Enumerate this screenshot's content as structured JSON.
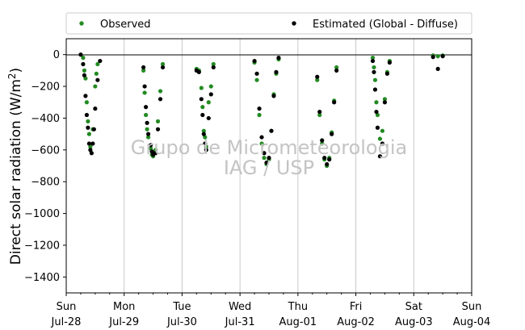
{
  "chart_data": {
    "type": "scatter",
    "title": "",
    "ylabel_main": "Direct solar radiation (W/m",
    "ylabel_sup": "2",
    "ylabel_close": ")",
    "ylim": [
      -1500,
      100
    ],
    "yticks": [
      0,
      -200,
      -400,
      -600,
      -800,
      -1000,
      -1200,
      -1400
    ],
    "xlim": [
      "2024-07-28",
      "2024-08-04"
    ],
    "xticks": [
      {
        "day": "Sun",
        "date": "Jul-28"
      },
      {
        "day": "Mon",
        "date": "Jul-29"
      },
      {
        "day": "Tue",
        "date": "Jul-30"
      },
      {
        "day": "Wed",
        "date": "Jul-31"
      },
      {
        "day": "Thu",
        "date": "Aug-01"
      },
      {
        "day": "Fri",
        "date": "Aug-02"
      },
      {
        "day": "Sat",
        "date": "Aug-03"
      },
      {
        "day": "Sun",
        "date": "Aug-04"
      }
    ],
    "grid": "vertical",
    "legend_placement": "top",
    "watermark": [
      "Grupo de Micrometeorologia",
      "IAG / USP"
    ],
    "series": [
      {
        "name": "Observed",
        "color": "#228b22",
        "points": [
          [
            "2024-07-28 06:00",
            0
          ],
          [
            "2024-07-28 07:00",
            -20
          ],
          [
            "2024-07-28 07:30",
            -100
          ],
          [
            "2024-07-28 08:00",
            -150
          ],
          [
            "2024-07-28 08:30",
            -300
          ],
          [
            "2024-07-28 09:00",
            -420
          ],
          [
            "2024-07-28 09:30",
            -500
          ],
          [
            "2024-07-28 10:00",
            -580
          ],
          [
            "2024-07-28 11:00",
            -470
          ],
          [
            "2024-07-28 12:00",
            -200
          ],
          [
            "2024-07-28 12:30",
            -120
          ],
          [
            "2024-07-28 13:00",
            -60
          ],
          [
            "2024-07-29 08:00",
            -100
          ],
          [
            "2024-07-29 08:30",
            -240
          ],
          [
            "2024-07-29 09:00",
            -380
          ],
          [
            "2024-07-29 09:30",
            -470
          ],
          [
            "2024-07-29 10:00",
            -520
          ],
          [
            "2024-07-29 11:00",
            -590
          ],
          [
            "2024-07-29 11:30",
            -630
          ],
          [
            "2024-07-29 12:00",
            -640
          ],
          [
            "2024-07-29 13:00",
            -600
          ],
          [
            "2024-07-29 14:00",
            -420
          ],
          [
            "2024-07-29 15:00",
            -230
          ],
          [
            "2024-07-29 16:00",
            -60
          ],
          [
            "2024-07-30 06:00",
            -90
          ],
          [
            "2024-07-30 07:00",
            -100
          ],
          [
            "2024-07-30 08:00",
            -210
          ],
          [
            "2024-07-30 08:30",
            -330
          ],
          [
            "2024-07-30 09:00",
            -480
          ],
          [
            "2024-07-30 09:30",
            -520
          ],
          [
            "2024-07-30 10:00",
            -580
          ],
          [
            "2024-07-30 11:00",
            -300
          ],
          [
            "2024-07-30 12:00",
            -200
          ],
          [
            "2024-07-30 13:00",
            -60
          ],
          [
            "2024-07-31 06:00",
            -50
          ],
          [
            "2024-07-31 07:00",
            -160
          ],
          [
            "2024-07-31 08:00",
            -380
          ],
          [
            "2024-07-31 09:00",
            -560
          ],
          [
            "2024-07-31 10:00",
            -650
          ],
          [
            "2024-07-31 11:00",
            -690
          ],
          [
            "2024-07-31 12:00",
            -660
          ],
          [
            "2024-07-31 13:00",
            -480
          ],
          [
            "2024-07-31 14:00",
            -250
          ],
          [
            "2024-07-31 15:00",
            -120
          ],
          [
            "2024-07-31 16:00",
            -30
          ],
          [
            "2024-08-01 08:00",
            -160
          ],
          [
            "2024-08-01 09:00",
            -380
          ],
          [
            "2024-08-01 10:00",
            -560
          ],
          [
            "2024-08-01 11:00",
            -660
          ],
          [
            "2024-08-01 12:00",
            -700
          ],
          [
            "2024-08-01 13:00",
            -650
          ],
          [
            "2024-08-01 14:00",
            -490
          ],
          [
            "2024-08-01 15:00",
            -290
          ],
          [
            "2024-08-01 16:00",
            -80
          ],
          [
            "2024-08-02 07:00",
            -20
          ],
          [
            "2024-08-02 07:30",
            -80
          ],
          [
            "2024-08-02 08:00",
            -160
          ],
          [
            "2024-08-02 08:30",
            -300
          ],
          [
            "2024-08-02 09:00",
            -380
          ],
          [
            "2024-08-02 10:00",
            -530
          ],
          [
            "2024-08-02 11:00",
            -480
          ],
          [
            "2024-08-02 12:00",
            -280
          ],
          [
            "2024-08-02 13:00",
            -110
          ],
          [
            "2024-08-02 14:00",
            -40
          ],
          [
            "2024-08-03 08:00",
            -5
          ],
          [
            "2024-08-03 10:00",
            -10
          ],
          [
            "2024-08-03 12:00",
            -5
          ]
        ]
      },
      {
        "name": "Estimated (Global - Diffuse)",
        "color": "#000000",
        "points": [
          [
            "2024-07-28 06:00",
            0
          ],
          [
            "2024-07-28 07:00",
            -60
          ],
          [
            "2024-07-28 07:30",
            -130
          ],
          [
            "2024-07-28 08:00",
            -260
          ],
          [
            "2024-07-28 08:30",
            -380
          ],
          [
            "2024-07-28 09:00",
            -460
          ],
          [
            "2024-07-28 09:30",
            -560
          ],
          [
            "2024-07-28 10:00",
            -600
          ],
          [
            "2024-07-28 10:30",
            -620
          ],
          [
            "2024-07-28 11:00",
            -560
          ],
          [
            "2024-07-28 11:30",
            -470
          ],
          [
            "2024-07-28 12:00",
            -340
          ],
          [
            "2024-07-28 13:00",
            -160
          ],
          [
            "2024-07-28 14:00",
            -40
          ],
          [
            "2024-07-29 08:00",
            -80
          ],
          [
            "2024-07-29 08:30",
            -200
          ],
          [
            "2024-07-29 09:00",
            -330
          ],
          [
            "2024-07-29 09:30",
            -430
          ],
          [
            "2024-07-29 10:00",
            -500
          ],
          [
            "2024-07-29 11:00",
            -570
          ],
          [
            "2024-07-29 11:30",
            -610
          ],
          [
            "2024-07-29 12:00",
            -630
          ],
          [
            "2024-07-29 13:00",
            -620
          ],
          [
            "2024-07-29 14:00",
            -470
          ],
          [
            "2024-07-29 15:00",
            -280
          ],
          [
            "2024-07-29 16:00",
            -80
          ],
          [
            "2024-07-30 06:00",
            -100
          ],
          [
            "2024-07-30 07:00",
            -110
          ],
          [
            "2024-07-30 08:00",
            -280
          ],
          [
            "2024-07-30 08:30",
            -380
          ],
          [
            "2024-07-30 09:00",
            -500
          ],
          [
            "2024-07-30 09:30",
            -560
          ],
          [
            "2024-07-30 10:00",
            -600
          ],
          [
            "2024-07-30 11:00",
            -400
          ],
          [
            "2024-07-30 12:00",
            -250
          ],
          [
            "2024-07-30 13:00",
            -80
          ],
          [
            "2024-07-31 06:00",
            -40
          ],
          [
            "2024-07-31 07:00",
            -120
          ],
          [
            "2024-07-31 08:00",
            -340
          ],
          [
            "2024-07-31 09:00",
            -520
          ],
          [
            "2024-07-31 10:00",
            -620
          ],
          [
            "2024-07-31 11:00",
            -680
          ],
          [
            "2024-07-31 12:00",
            -650
          ],
          [
            "2024-07-31 13:00",
            -480
          ],
          [
            "2024-07-31 14:00",
            -260
          ],
          [
            "2024-07-31 15:00",
            -110
          ],
          [
            "2024-07-31 16:00",
            -20
          ],
          [
            "2024-08-01 08:00",
            -140
          ],
          [
            "2024-08-01 09:00",
            -360
          ],
          [
            "2024-08-01 10:00",
            -540
          ],
          [
            "2024-08-01 11:00",
            -650
          ],
          [
            "2024-08-01 12:00",
            -690
          ],
          [
            "2024-08-01 13:00",
            -660
          ],
          [
            "2024-08-01 14:00",
            -500
          ],
          [
            "2024-08-01 15:00",
            -300
          ],
          [
            "2024-08-01 16:00",
            -100
          ],
          [
            "2024-08-02 07:00",
            -40
          ],
          [
            "2024-08-02 07:30",
            -110
          ],
          [
            "2024-08-02 08:00",
            -220
          ],
          [
            "2024-08-02 08:30",
            -360
          ],
          [
            "2024-08-02 09:00",
            -460
          ],
          [
            "2024-08-02 10:00",
            -640
          ],
          [
            "2024-08-02 11:00",
            -560
          ],
          [
            "2024-08-02 12:00",
            -300
          ],
          [
            "2024-08-02 13:00",
            -120
          ],
          [
            "2024-08-02 14:00",
            -50
          ],
          [
            "2024-08-03 08:00",
            -15
          ],
          [
            "2024-08-03 10:00",
            -90
          ],
          [
            "2024-08-03 12:00",
            -10
          ]
        ]
      }
    ]
  }
}
